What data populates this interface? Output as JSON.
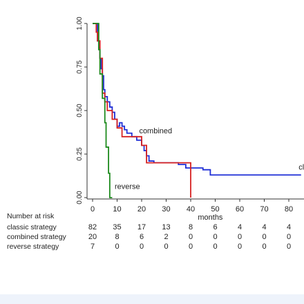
{
  "chart_data": {
    "type": "line",
    "chart_kind": "kaplan-meier survival curves",
    "xlabel": "months",
    "ylabel": "",
    "xlim": [
      0,
      85
    ],
    "ylim": [
      0,
      1
    ],
    "x_ticks": [
      "0",
      "10",
      "20",
      "30",
      "40",
      "50",
      "60",
      "70",
      "80"
    ],
    "y_ticks": [
      "0.00",
      "0.25",
      "0.50",
      "0.75",
      "1.00"
    ],
    "grid": false,
    "legend": "none",
    "series": [
      {
        "name": "classic",
        "color": "#1f2fd6",
        "points": [
          [
            0,
            1.0
          ],
          [
            1.5,
            1.0
          ],
          [
            2,
            0.9
          ],
          [
            2.5,
            0.86
          ],
          [
            3,
            0.8
          ],
          [
            3.5,
            0.74
          ],
          [
            4,
            0.7
          ],
          [
            4.5,
            0.62
          ],
          [
            5,
            0.58
          ],
          [
            6,
            0.55
          ],
          [
            7,
            0.52
          ],
          [
            8,
            0.49
          ],
          [
            9,
            0.45
          ],
          [
            10,
            0.41
          ],
          [
            11,
            0.43
          ],
          [
            12,
            0.41
          ],
          [
            13,
            0.39
          ],
          [
            14,
            0.37
          ],
          [
            16,
            0.35
          ],
          [
            18,
            0.33
          ],
          [
            20,
            0.3
          ],
          [
            21,
            0.27
          ],
          [
            22,
            0.24
          ],
          [
            23,
            0.21
          ],
          [
            25,
            0.2
          ],
          [
            30,
            0.2
          ],
          [
            34,
            0.2
          ],
          [
            35,
            0.19
          ],
          [
            38,
            0.17
          ],
          [
            45,
            0.16
          ],
          [
            48,
            0.13
          ],
          [
            85,
            0.13
          ]
        ]
      },
      {
        "name": "combined",
        "color": "#d62020",
        "points": [
          [
            0,
            1.0
          ],
          [
            1,
            1.0
          ],
          [
            1.5,
            0.95
          ],
          [
            2,
            0.9
          ],
          [
            3,
            0.8
          ],
          [
            4,
            0.6
          ],
          [
            5,
            0.55
          ],
          [
            6,
            0.5
          ],
          [
            8,
            0.45
          ],
          [
            10,
            0.4
          ],
          [
            12,
            0.35
          ],
          [
            18,
            0.35
          ],
          [
            20,
            0.3
          ],
          [
            22,
            0.2
          ],
          [
            28,
            0.2
          ],
          [
            40,
            0.2
          ],
          [
            40,
            0
          ]
        ]
      },
      {
        "name": "reverse",
        "color": "#1d8a1d",
        "points": [
          [
            0,
            1.0
          ],
          [
            2,
            1.0
          ],
          [
            2.5,
            0.85
          ],
          [
            3,
            0.71
          ],
          [
            4,
            0.57
          ],
          [
            5,
            0.43
          ],
          [
            5.5,
            0.29
          ],
          [
            6.5,
            0.14
          ],
          [
            7,
            0
          ],
          [
            8,
            0
          ]
        ]
      }
    ],
    "annotations": [
      {
        "text": "combined",
        "x": 19,
        "y": 0.37
      },
      {
        "text": "reverse",
        "x": 9,
        "y": 0.05
      },
      {
        "text": "cla",
        "x": 84,
        "y": 0.16
      }
    ],
    "risk_table": {
      "title": "Number at risk",
      "rows": [
        {
          "label": "classic strategy",
          "values": [
            "82",
            "35",
            "17",
            "13",
            "8",
            "6",
            "4",
            "4",
            "4"
          ]
        },
        {
          "label": "combined strategy",
          "values": [
            "20",
            "8",
            "6",
            "2",
            "0",
            "0",
            "0",
            "0",
            "0"
          ]
        },
        {
          "label": "reverse strategy",
          "values": [
            "7",
            "0",
            "0",
            "0",
            "0",
            "0",
            "0",
            "0",
            "0"
          ]
        }
      ]
    }
  }
}
